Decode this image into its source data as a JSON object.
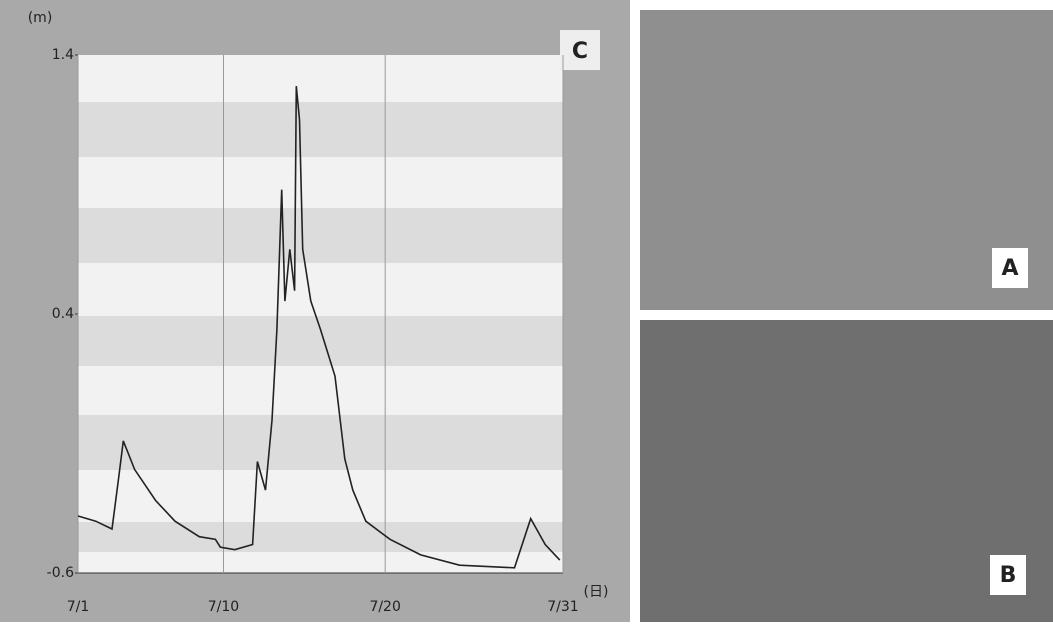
{
  "chart_data": {
    "type": "line",
    "panel_label": "C",
    "y_label": "(m)",
    "x_label": "(日)",
    "x": [
      1,
      2.1,
      3.1,
      3.5,
      3.8,
      4.5,
      5.8,
      7.0,
      8.5,
      9.5,
      9.8,
      10.7,
      11.8,
      12.1,
      12.6,
      13.0,
      13.3,
      13.6,
      13.8,
      14.1,
      14.4,
      14.5,
      14.7,
      14.9,
      15.4,
      16.0,
      16.9,
      17.5,
      18.0,
      18.8,
      20.3,
      22.2,
      24.6,
      28.0,
      29.0,
      29.9,
      30.8
    ],
    "series": [
      {
        "color": "#222222",
        "values": [
          -0.38,
          -0.4,
          -0.43,
          -0.24,
          -0.09,
          -0.2,
          -0.32,
          -0.4,
          -0.46,
          -0.47,
          -0.5,
          -0.51,
          -0.49,
          -0.17,
          -0.28,
          -0.01,
          0.34,
          0.88,
          0.45,
          0.65,
          0.49,
          1.28,
          1.15,
          0.65,
          0.45,
          0.34,
          0.16,
          -0.16,
          -0.28,
          -0.4,
          -0.47,
          -0.53,
          -0.57,
          -0.58,
          -0.39,
          -0.49,
          -0.55
        ]
      }
    ],
    "xlim": [
      1,
      31
    ],
    "xticks": [
      {
        "value": 1,
        "label": "7/1"
      },
      {
        "value": 10,
        "label": "7/10"
      },
      {
        "value": 20,
        "label": "7/20"
      },
      {
        "value": 31,
        "label": "7/31"
      }
    ],
    "ylim": [
      -0.6,
      1.4
    ],
    "yticks": [
      1.4,
      0.4,
      -0.6
    ],
    "grid": true
  },
  "photos": [
    {
      "label": "A"
    },
    {
      "label": "B"
    }
  ]
}
